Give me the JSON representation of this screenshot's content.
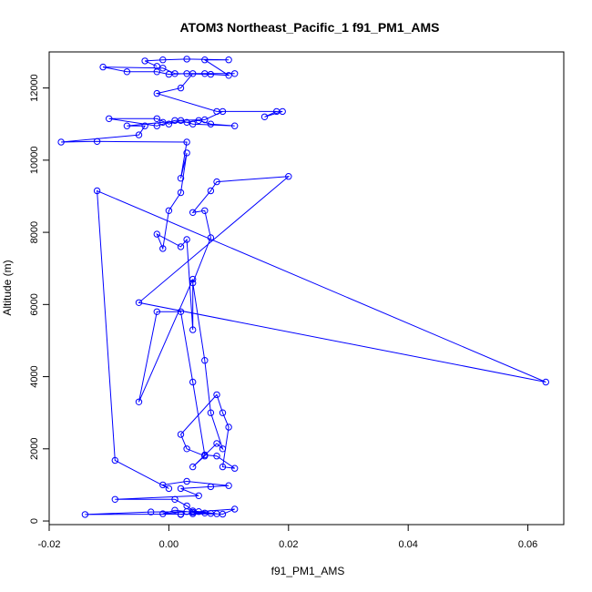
{
  "chart_data": {
    "type": "line",
    "title": "ATOM3 Northeast_Pacific_1 f91_PM1_AMS",
    "xlabel": "f91_PM1_AMS",
    "ylabel": "Altitude (m)",
    "xlim": [
      -0.02,
      0.066
    ],
    "ylim": [
      -100,
      13000
    ],
    "xticks": [
      "-0.02",
      "0.00",
      "0.02",
      "0.04",
      "0.06"
    ],
    "yticks": [
      "0",
      "2000",
      "4000",
      "6000",
      "8000",
      "10000",
      "12000"
    ],
    "grid": false,
    "legend": "none",
    "markers": "open-circle",
    "color": "#0000ff",
    "series": [
      {
        "points": [
          [
            0.002,
            180
          ],
          [
            0.004,
            200
          ],
          [
            0.006,
            220
          ],
          [
            0.003,
            260
          ],
          [
            -0.001,
            200
          ],
          [
            0.001,
            300
          ],
          [
            0.004,
            240
          ],
          [
            0.007,
            210
          ],
          [
            0.009,
            190
          ],
          [
            0.011,
            330
          ],
          [
            0.005,
            260
          ],
          [
            -0.003,
            250
          ],
          [
            -0.014,
            180
          ],
          [
            0.002,
            190
          ],
          [
            0.008,
            200
          ],
          [
            0.004,
            280
          ],
          [
            0.003,
            420
          ],
          [
            0.001,
            600
          ],
          [
            -0.009,
            600
          ],
          [
            0.005,
            700
          ],
          [
            0.002,
            900
          ],
          [
            0.007,
            950
          ],
          [
            0.01,
            980
          ],
          [
            0.003,
            1100
          ],
          [
            -0.001,
            1000
          ],
          [
            0.0,
            900
          ],
          [
            -0.009,
            1680
          ],
          [
            -0.012,
            9150
          ],
          [
            0.063,
            3850
          ],
          [
            -0.005,
            6050
          ],
          [
            0.02,
            9550
          ],
          [
            0.008,
            9400
          ],
          [
            0.007,
            9150
          ],
          [
            0.004,
            8550
          ],
          [
            0.006,
            8600
          ],
          [
            0.007,
            7850
          ],
          [
            0.004,
            6600
          ],
          [
            0.006,
            4450
          ],
          [
            0.007,
            3000
          ],
          [
            0.009,
            2000
          ],
          [
            0.008,
            2150
          ],
          [
            0.004,
            1500
          ],
          [
            0.006,
            1800
          ],
          [
            0.003,
            2000
          ],
          [
            0.002,
            2400
          ],
          [
            0.008,
            3500
          ],
          [
            0.009,
            3000
          ],
          [
            0.01,
            2600
          ],
          [
            0.009,
            1500
          ],
          [
            0.011,
            1460
          ],
          [
            0.008,
            1800
          ],
          [
            0.006,
            1830
          ],
          [
            0.004,
            3850
          ],
          [
            0.002,
            5800
          ],
          [
            -0.002,
            5800
          ],
          [
            -0.005,
            3300
          ],
          [
            0.004,
            6700
          ],
          [
            0.004,
            5300
          ],
          [
            0.003,
            7800
          ],
          [
            0.002,
            7600
          ],
          [
            -0.002,
            7950
          ],
          [
            -0.001,
            7550
          ],
          [
            0.0,
            8600
          ],
          [
            0.002,
            9100
          ],
          [
            0.003,
            10200
          ],
          [
            0.002,
            9500
          ],
          [
            0.003,
            10500
          ],
          [
            -0.012,
            10520
          ],
          [
            -0.018,
            10500
          ],
          [
            -0.005,
            10700
          ],
          [
            -0.004,
            10950
          ],
          [
            -0.007,
            10950
          ],
          [
            -0.001,
            11050
          ],
          [
            0.003,
            11050
          ],
          [
            0.005,
            11100
          ],
          [
            0.007,
            11000
          ],
          [
            0.011,
            10950
          ],
          [
            0.004,
            11000
          ],
          [
            0.002,
            11100
          ],
          [
            0.0,
            11000
          ],
          [
            -0.002,
            11150
          ],
          [
            -0.01,
            11150
          ],
          [
            -0.002,
            10950
          ],
          [
            0.001,
            11100
          ],
          [
            0.006,
            11120
          ],
          [
            0.009,
            11350
          ],
          [
            0.019,
            11350
          ],
          [
            0.016,
            11200
          ],
          [
            0.018,
            11350
          ],
          [
            0.008,
            11350
          ],
          [
            -0.002,
            11850
          ],
          [
            0.002,
            12000
          ],
          [
            0.004,
            12400
          ],
          [
            0.006,
            12400
          ],
          [
            0.011,
            12400
          ],
          [
            0.003,
            12400
          ],
          [
            0.0,
            12380
          ],
          [
            -0.002,
            12450
          ],
          [
            -0.007,
            12450
          ],
          [
            -0.011,
            12580
          ],
          [
            -0.001,
            12550
          ],
          [
            0.001,
            12400
          ],
          [
            0.007,
            12380
          ],
          [
            0.01,
            12350
          ],
          [
            0.006,
            12780
          ],
          [
            0.01,
            12780
          ],
          [
            0.003,
            12800
          ],
          [
            -0.001,
            12780
          ],
          [
            -0.004,
            12750
          ],
          [
            -0.002,
            12600
          ]
        ]
      }
    ]
  }
}
